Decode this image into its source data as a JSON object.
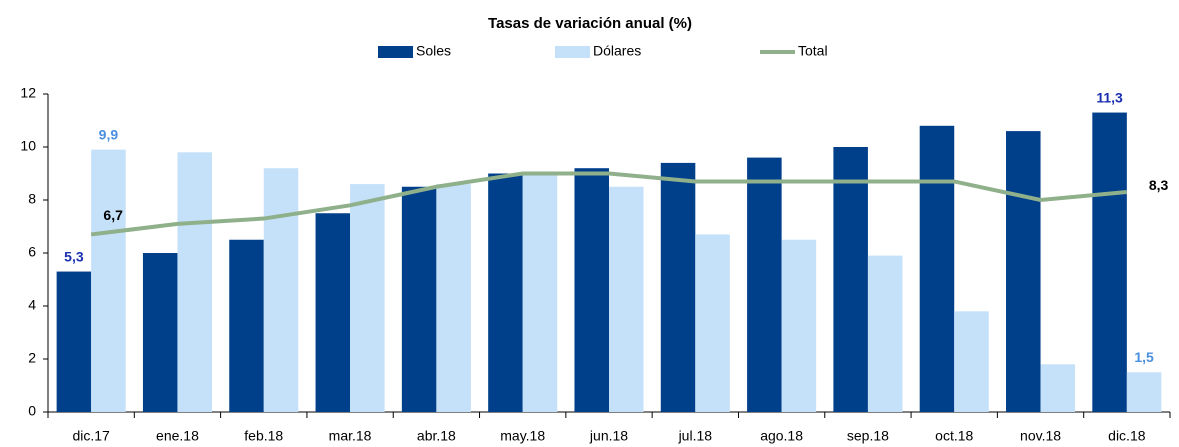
{
  "chart_data": {
    "type": "bar_line",
    "title": "Tasas de variación anual (%)",
    "categories": [
      "dic.17",
      "ene.18",
      "feb.18",
      "mar.18",
      "abr.18",
      "may.18",
      "jun.18",
      "jul.18",
      "ago.18",
      "sep.18",
      "oct.18",
      "nov.18",
      "dic.18"
    ],
    "series": [
      {
        "name": "Soles",
        "type": "bar",
        "color": "#003f8a",
        "label_color": "#1a2fb0",
        "values": [
          5.3,
          6.0,
          6.5,
          7.5,
          8.5,
          9.0,
          9.2,
          9.4,
          9.6,
          10.0,
          10.8,
          10.6,
          11.3
        ],
        "value_labels": [
          "5,3",
          null,
          null,
          null,
          null,
          null,
          null,
          null,
          null,
          null,
          null,
          null,
          "11,3"
        ]
      },
      {
        "name": "Dólares",
        "type": "bar",
        "color": "#c5e0f9",
        "label_color": "#4a8fe0",
        "values": [
          9.9,
          9.8,
          9.2,
          8.6,
          8.6,
          9.0,
          8.5,
          6.7,
          6.5,
          5.9,
          3.8,
          1.8,
          1.5
        ],
        "value_labels": [
          "9,9",
          null,
          null,
          null,
          null,
          null,
          null,
          null,
          null,
          null,
          null,
          null,
          "1,5"
        ]
      },
      {
        "name": "Total",
        "type": "line",
        "color": "#8fb08a",
        "label_color": "#000000",
        "values": [
          6.7,
          7.1,
          7.3,
          7.8,
          8.5,
          9.0,
          9.0,
          8.7,
          8.7,
          8.7,
          8.7,
          8.0,
          8.3
        ],
        "value_labels": [
          "6,7",
          null,
          null,
          null,
          null,
          null,
          null,
          null,
          null,
          null,
          null,
          null,
          "8,3"
        ]
      }
    ],
    "ylim": [
      0,
      12
    ],
    "yticks": [
      0,
      2,
      4,
      6,
      8,
      10,
      12
    ],
    "grid": false,
    "legend": "top"
  }
}
